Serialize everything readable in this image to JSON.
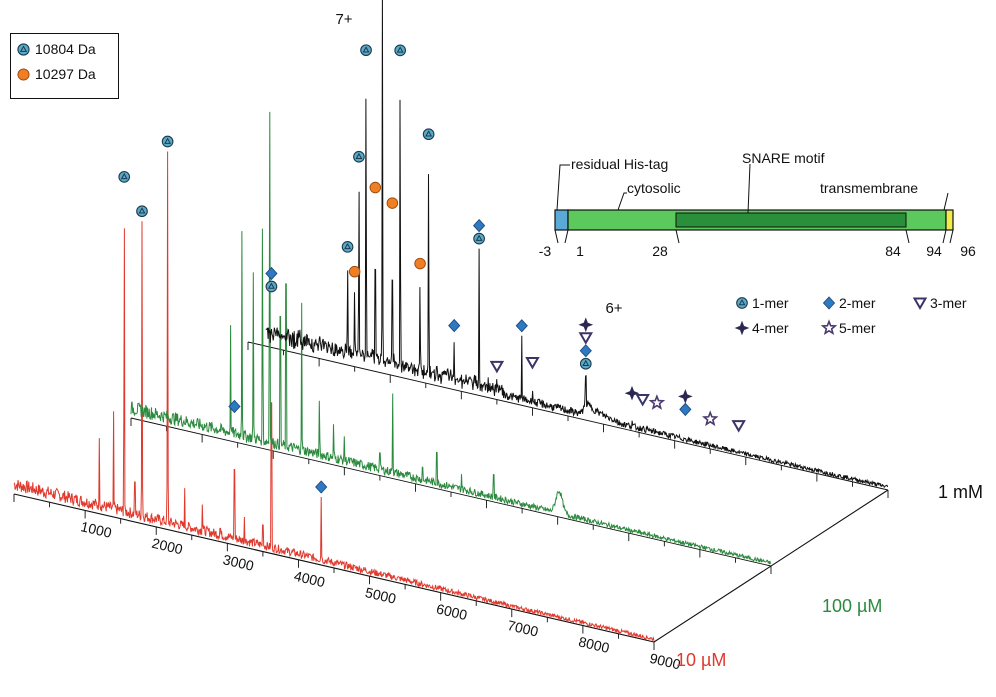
{
  "chart_data": {
    "type": "line",
    "description_axes": {
      "x_ticks": [
        1000,
        2000,
        3000,
        4000,
        5000,
        6000,
        7000,
        8000,
        9000
      ],
      "x_range": [
        0,
        9000
      ]
    },
    "series": [
      {
        "name": "10 µM",
        "color": "#e03a2e",
        "peaks": [
          {
            "x": 1550,
            "height": 0.88,
            "marker": "1-mer"
          },
          {
            "x": 1800,
            "height": 0.8,
            "marker": "1-mer"
          },
          {
            "x": 2160,
            "height": 1.0,
            "marker": "1-mer"
          },
          {
            "x": 1200,
            "height": 0.2
          },
          {
            "x": 1400,
            "height": 0.28
          },
          {
            "x": 1700,
            "height": 0.18
          },
          {
            "x": 2400,
            "height": 0.12
          },
          {
            "x": 2650,
            "height": 0.1
          },
          {
            "x": 2900,
            "height": 0.06
          },
          {
            "x": 3100,
            "height": 0.34,
            "marker": "2-mer"
          },
          {
            "x": 3240,
            "height": 0.08
          },
          {
            "x": 3500,
            "height": 0.12
          },
          {
            "x": 3620,
            "height": 0.68,
            "markers": [
              "2-mer",
              "1-mer"
            ]
          },
          {
            "x": 4320,
            "height": 0.18,
            "marker": "2-mer"
          }
        ]
      },
      {
        "name": "100 µM",
        "color": "#2b8a3e",
        "peaks": [
          {
            "x": 1400,
            "height": 0.3
          },
          {
            "x": 1560,
            "height": 0.55
          },
          {
            "x": 1720,
            "height": 0.45
          },
          {
            "x": 1850,
            "height": 0.65
          },
          {
            "x": 1950,
            "height": 1.0
          },
          {
            "x": 2100,
            "height": 0.6
          },
          {
            "x": 2180,
            "height": 0.75
          },
          {
            "x": 2400,
            "height": 0.4
          },
          {
            "x": 2650,
            "height": 0.18
          },
          {
            "x": 2850,
            "height": 0.12
          },
          {
            "x": 3000,
            "height": 0.08
          },
          {
            "x": 3500,
            "height": 0.1
          },
          {
            "x": 3680,
            "height": 0.22
          },
          {
            "x": 4100,
            "height": 0.08
          },
          {
            "x": 4300,
            "height": 0.16
          },
          {
            "x": 4650,
            "height": 0.06
          },
          {
            "x": 5100,
            "height": 0.12
          }
        ]
      },
      {
        "name": "1 mM",
        "color": "#111111",
        "peaks": [
          {
            "x": 1400,
            "height": 0.28,
            "marker": "1-mer"
          },
          {
            "x": 1500,
            "height": 0.22,
            "marker": "10297"
          },
          {
            "x": 1560,
            "height": 0.52,
            "marker": "1-mer"
          },
          {
            "x": 1660,
            "height": 0.8,
            "marker": "1-mer"
          },
          {
            "x": 1790,
            "height": 0.45,
            "marker": "10297"
          },
          {
            "x": 1890,
            "height": 1.0,
            "marker": "1-mer"
          },
          {
            "x": 2030,
            "height": 0.42,
            "marker": "10297"
          },
          {
            "x": 2140,
            "height": 0.82,
            "marker": "1-mer"
          },
          {
            "x": 2420,
            "height": 0.28,
            "marker": "10297"
          },
          {
            "x": 2540,
            "height": 0.62,
            "marker": "1-mer"
          },
          {
            "x": 2900,
            "height": 0.14,
            "marker": "2-mer"
          },
          {
            "x": 3250,
            "height": 0.38,
            "markers": [
              "2-mer",
              "1-mer"
            ]
          },
          {
            "x": 3500,
            "height": 0.06,
            "marker": "3-mer"
          },
          {
            "x": 3850,
            "height": 0.18,
            "marker": "2-mer"
          },
          {
            "x": 4000,
            "height": 0.05,
            "marker": "3-mer"
          },
          {
            "x": 4750,
            "height": 0.12,
            "markers": [
              "4-mer",
              "3-mer",
              "2-mer",
              "1-mer"
            ]
          },
          {
            "x": 5400,
            "height": 0.03,
            "marker": "4-mer"
          },
          {
            "x": 5550,
            "height": 0.02,
            "marker": "3-mer"
          },
          {
            "x": 5750,
            "height": 0.02,
            "marker": "5-mer"
          },
          {
            "x": 6150,
            "height": 0.02,
            "markers": [
              "4-mer",
              "2-mer"
            ]
          },
          {
            "x": 6500,
            "height": 0.01,
            "marker": "5-mer"
          },
          {
            "x": 6900,
            "height": 0.01,
            "marker": "3-mer"
          }
        ]
      }
    ],
    "annotations": [
      "7+",
      "6+"
    ],
    "legend_mass": [
      {
        "label": "10804 Da",
        "marker": "1-mer",
        "color": "#5aa9c9"
      },
      {
        "label": "10297 Da",
        "marker": "10297",
        "color": "#f07f23"
      }
    ],
    "legend_oligomer": [
      {
        "label": "1-mer",
        "symbol": "circle-triangle",
        "color": "#5aa9c9"
      },
      {
        "label": "2-mer",
        "symbol": "diamond",
        "color": "#2f78c2"
      },
      {
        "label": "3-mer",
        "symbol": "triangle-down",
        "color": "#3b3466"
      },
      {
        "label": "4-mer",
        "symbol": "star4",
        "color": "#2b2752"
      },
      {
        "label": "5-mer",
        "symbol": "star5",
        "color": "#4a3a6e"
      }
    ]
  },
  "domain_map": {
    "labels": {
      "his_tag": "residual His-tag",
      "snare": "SNARE motif",
      "cytosolic": "cytosolic",
      "transmembrane": "transmembrane"
    },
    "positions": [
      "-3",
      "1",
      "28",
      "84",
      "94",
      "96"
    ],
    "colors": {
      "his_tag": "#5ba9d6",
      "cytosolic": "#5cc95c",
      "snare": "#2a8f3a",
      "transmembrane": "#f2ec4a"
    }
  }
}
